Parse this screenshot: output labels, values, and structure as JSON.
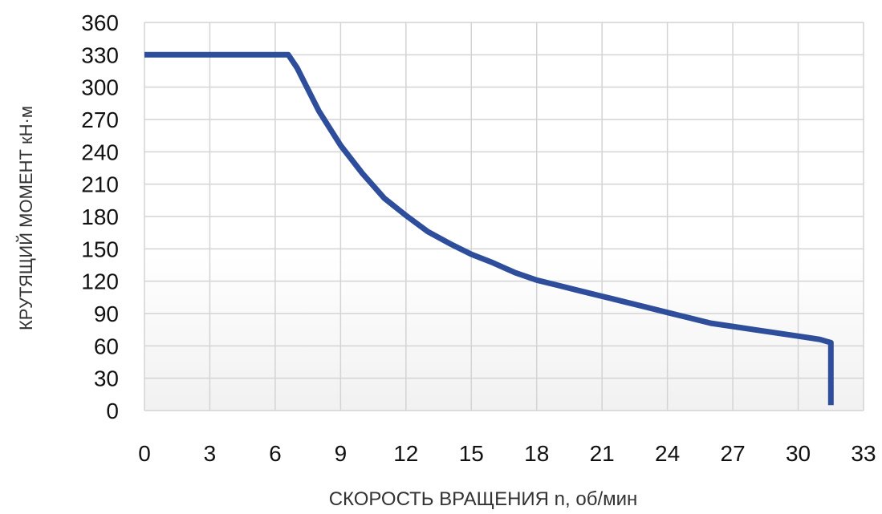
{
  "chart_data": {
    "type": "line",
    "title": "",
    "xlabel": "СКОРОСТЬ ВРАЩЕНИЯ n, об/мин",
    "ylabel": "КРУТЯЩИЙ МОМЕНТ кН·м",
    "xlim": [
      0,
      33
    ],
    "ylim": [
      0,
      360
    ],
    "xticks": [
      0,
      3,
      6,
      9,
      12,
      15,
      18,
      21,
      24,
      27,
      30,
      33
    ],
    "yticks": [
      0,
      30,
      60,
      90,
      120,
      150,
      180,
      210,
      240,
      270,
      300,
      330,
      360
    ],
    "grid": true,
    "legend": "none",
    "series": [
      {
        "color": "#2E4E9C",
        "points": [
          [
            0,
            330
          ],
          [
            6.6,
            330
          ],
          [
            7,
            318
          ],
          [
            8,
            278
          ],
          [
            9,
            246
          ],
          [
            10,
            220
          ],
          [
            11,
            197
          ],
          [
            12,
            181
          ],
          [
            13,
            166
          ],
          [
            14,
            155
          ],
          [
            15,
            145
          ],
          [
            16,
            137
          ],
          [
            17,
            128
          ],
          [
            18,
            121
          ],
          [
            19,
            116
          ],
          [
            20,
            111
          ],
          [
            21,
            106
          ],
          [
            22,
            101
          ],
          [
            23,
            96
          ],
          [
            24,
            91
          ],
          [
            25,
            86
          ],
          [
            26,
            81
          ],
          [
            27,
            78
          ],
          [
            28,
            75
          ],
          [
            29,
            72
          ],
          [
            30,
            69
          ],
          [
            31,
            66
          ],
          [
            31.5,
            63
          ],
          [
            31.5,
            5
          ]
        ]
      }
    ]
  }
}
